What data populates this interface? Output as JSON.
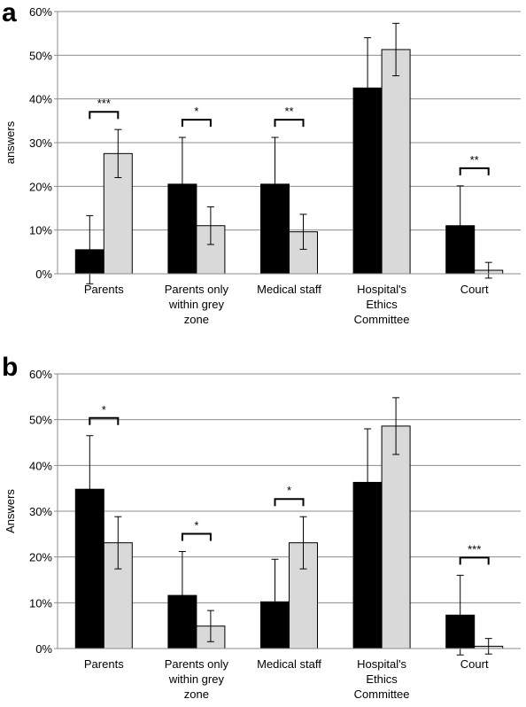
{
  "chart_data": [
    {
      "type": "bar",
      "panel": "a",
      "ylabel": "answers",
      "categories": [
        [
          "Parents"
        ],
        [
          "Parents only",
          "within grey",
          "zone"
        ],
        [
          "Medical staff"
        ],
        [
          "Hospital's",
          "Ethics",
          "Committee"
        ],
        [
          "Court"
        ]
      ],
      "series": [
        {
          "color": "#000000",
          "values": [
            5.5,
            20.5,
            20.5,
            42.5,
            11
          ],
          "errors": [
            7.8,
            10.7,
            10.7,
            11.5,
            9.1
          ]
        },
        {
          "color": "#d9d9d9",
          "values": [
            27.5,
            11,
            9.6,
            51.3,
            0.8
          ],
          "errors": [
            5.5,
            4.3,
            4,
            6,
            1.8
          ]
        }
      ],
      "annotations": [
        "***",
        "*",
        "**",
        null,
        "**"
      ],
      "ylim": [
        0,
        60
      ],
      "yticks": [
        {
          "value": 0,
          "label": "0%"
        },
        {
          "value": 10,
          "label": "10%"
        },
        {
          "value": 20,
          "label": "20%"
        },
        {
          "value": 30,
          "label": "30%"
        },
        {
          "value": 40,
          "label": "40%"
        },
        {
          "value": 50,
          "label": "50%"
        },
        {
          "value": 60,
          "label": "60%"
        }
      ],
      "grid": true
    },
    {
      "type": "bar",
      "panel": "b",
      "ylabel": "Answers",
      "categories": [
        [
          "Parents"
        ],
        [
          "Parents only",
          "within grey",
          "zone"
        ],
        [
          "Medical staff"
        ],
        [
          "Hospital's",
          "Ethics",
          "Committee"
        ],
        [
          "Court"
        ]
      ],
      "series": [
        {
          "color": "#000000",
          "values": [
            34.8,
            11.6,
            10.2,
            36.3,
            7.3
          ],
          "errors": [
            11.7,
            9.6,
            9.3,
            11.7,
            8.7
          ]
        },
        {
          "color": "#d9d9d9",
          "values": [
            23.1,
            4.9,
            23.1,
            48.6,
            0.5
          ],
          "errors": [
            5.7,
            3.4,
            5.7,
            6.2,
            1.7
          ]
        }
      ],
      "annotations": [
        "*",
        "*",
        "*",
        null,
        "***"
      ],
      "ylim": [
        0,
        60
      ],
      "yticks": [
        {
          "value": 0,
          "label": "0%"
        },
        {
          "value": 10,
          "label": "10%"
        },
        {
          "value": 20,
          "label": "20%"
        },
        {
          "value": 30,
          "label": "30%"
        },
        {
          "value": 40,
          "label": "40%"
        },
        {
          "value": 50,
          "label": "50%"
        },
        {
          "value": 60,
          "label": "60%"
        }
      ],
      "grid": true
    }
  ]
}
